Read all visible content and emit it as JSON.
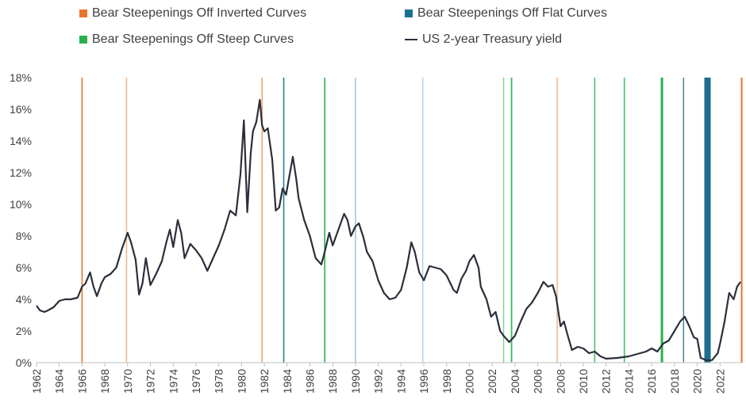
{
  "legend": {
    "items": [
      {
        "label": "Bear Steepenings Off Inverted Curves",
        "color": "#e8732a",
        "kind": "box"
      },
      {
        "label": "Bear Steepenings Off Flat Curves",
        "color": "#1b6e8f",
        "kind": "box"
      },
      {
        "label": "Bear Steepenings Off Steep Curves",
        "color": "#2ab04a",
        "kind": "box"
      },
      {
        "label": "US 2-year Treasury yield",
        "color": "#2c2f3a",
        "kind": "line"
      }
    ]
  },
  "chart_data": {
    "type": "line",
    "title": "",
    "xlabel": "",
    "ylabel": "",
    "xlim": [
      1962,
      2024
    ],
    "ylim": [
      0,
      18
    ],
    "grid": false,
    "legend_position": "top",
    "x_ticks": [
      "1962",
      "1964",
      "1966",
      "1968",
      "1970",
      "1972",
      "1974",
      "1976",
      "1978",
      "1980",
      "1982",
      "1984",
      "1986",
      "1988",
      "1990",
      "1992",
      "1994",
      "1996",
      "1998",
      "2000",
      "2002",
      "2004",
      "2006",
      "2008",
      "2010",
      "2012",
      "2014",
      "2016",
      "2018",
      "2020",
      "2022"
    ],
    "y_ticks": [
      "0%",
      "2%",
      "4%",
      "6%",
      "8%",
      "10%",
      "12%",
      "14%",
      "16%",
      "18%"
    ],
    "series": [
      {
        "name": "US 2-year Treasury yield",
        "color": "#2c2f3a",
        "points": [
          [
            1962.0,
            3.6
          ],
          [
            1962.3,
            3.3
          ],
          [
            1962.7,
            3.2
          ],
          [
            1963.0,
            3.3
          ],
          [
            1963.5,
            3.5
          ],
          [
            1964.0,
            3.9
          ],
          [
            1964.5,
            4.0
          ],
          [
            1965.0,
            4.0
          ],
          [
            1965.6,
            4.1
          ],
          [
            1966.0,
            4.8
          ],
          [
            1966.3,
            5.0
          ],
          [
            1966.7,
            5.7
          ],
          [
            1967.0,
            4.8
          ],
          [
            1967.3,
            4.2
          ],
          [
            1967.7,
            5.0
          ],
          [
            1968.0,
            5.4
          ],
          [
            1968.5,
            5.6
          ],
          [
            1969.0,
            6.0
          ],
          [
            1969.5,
            7.2
          ],
          [
            1970.0,
            8.2
          ],
          [
            1970.3,
            7.6
          ],
          [
            1970.7,
            6.5
          ],
          [
            1971.0,
            4.3
          ],
          [
            1971.3,
            5.0
          ],
          [
            1971.6,
            6.6
          ],
          [
            1972.0,
            4.9
          ],
          [
            1972.5,
            5.6
          ],
          [
            1973.0,
            6.4
          ],
          [
            1973.4,
            7.6
          ],
          [
            1973.7,
            8.4
          ],
          [
            1974.0,
            7.3
          ],
          [
            1974.4,
            9.0
          ],
          [
            1974.7,
            8.2
          ],
          [
            1975.0,
            6.6
          ],
          [
            1975.5,
            7.5
          ],
          [
            1976.0,
            7.1
          ],
          [
            1976.5,
            6.6
          ],
          [
            1977.0,
            5.8
          ],
          [
            1977.5,
            6.6
          ],
          [
            1978.0,
            7.4
          ],
          [
            1978.5,
            8.4
          ],
          [
            1979.0,
            9.6
          ],
          [
            1979.5,
            9.3
          ],
          [
            1979.9,
            11.9
          ],
          [
            1980.2,
            15.3
          ],
          [
            1980.5,
            9.5
          ],
          [
            1980.8,
            13.2
          ],
          [
            1981.0,
            14.6
          ],
          [
            1981.3,
            15.2
          ],
          [
            1981.6,
            16.6
          ],
          [
            1981.8,
            15.0
          ],
          [
            1982.0,
            14.6
          ],
          [
            1982.3,
            14.8
          ],
          [
            1982.7,
            12.8
          ],
          [
            1983.0,
            9.6
          ],
          [
            1983.3,
            9.8
          ],
          [
            1983.6,
            11.0
          ],
          [
            1983.9,
            10.6
          ],
          [
            1984.2,
            11.8
          ],
          [
            1984.5,
            13.0
          ],
          [
            1984.8,
            11.6
          ],
          [
            1985.0,
            10.4
          ],
          [
            1985.5,
            9.0
          ],
          [
            1986.0,
            8.0
          ],
          [
            1986.5,
            6.6
          ],
          [
            1987.0,
            6.2
          ],
          [
            1987.3,
            7.0
          ],
          [
            1987.7,
            8.2
          ],
          [
            1988.0,
            7.4
          ],
          [
            1988.5,
            8.4
          ],
          [
            1989.0,
            9.4
          ],
          [
            1989.3,
            9.0
          ],
          [
            1989.6,
            8.0
          ],
          [
            1990.0,
            8.6
          ],
          [
            1990.3,
            8.8
          ],
          [
            1990.7,
            7.9
          ],
          [
            1991.0,
            7.0
          ],
          [
            1991.5,
            6.4
          ],
          [
            1992.0,
            5.2
          ],
          [
            1992.5,
            4.4
          ],
          [
            1993.0,
            4.0
          ],
          [
            1993.5,
            4.1
          ],
          [
            1994.0,
            4.6
          ],
          [
            1994.5,
            6.0
          ],
          [
            1994.9,
            7.6
          ],
          [
            1995.2,
            7.0
          ],
          [
            1995.6,
            5.7
          ],
          [
            1996.0,
            5.2
          ],
          [
            1996.5,
            6.1
          ],
          [
            1997.0,
            6.0
          ],
          [
            1997.5,
            5.9
          ],
          [
            1998.0,
            5.5
          ],
          [
            1998.6,
            4.6
          ],
          [
            1998.9,
            4.4
          ],
          [
            1999.3,
            5.3
          ],
          [
            1999.7,
            5.8
          ],
          [
            2000.0,
            6.4
          ],
          [
            2000.4,
            6.8
          ],
          [
            2000.8,
            6.0
          ],
          [
            2001.0,
            4.8
          ],
          [
            2001.5,
            4.0
          ],
          [
            2001.9,
            2.9
          ],
          [
            2002.3,
            3.2
          ],
          [
            2002.7,
            2.0
          ],
          [
            2003.0,
            1.7
          ],
          [
            2003.5,
            1.3
          ],
          [
            2004.0,
            1.7
          ],
          [
            2004.5,
            2.6
          ],
          [
            2005.0,
            3.4
          ],
          [
            2005.5,
            3.8
          ],
          [
            2006.0,
            4.4
          ],
          [
            2006.5,
            5.1
          ],
          [
            2006.9,
            4.8
          ],
          [
            2007.3,
            4.9
          ],
          [
            2007.6,
            4.2
          ],
          [
            2008.0,
            2.3
          ],
          [
            2008.3,
            2.6
          ],
          [
            2008.6,
            1.8
          ],
          [
            2009.0,
            0.8
          ],
          [
            2009.5,
            1.0
          ],
          [
            2010.0,
            0.9
          ],
          [
            2010.5,
            0.6
          ],
          [
            2011.0,
            0.7
          ],
          [
            2011.5,
            0.4
          ],
          [
            2012.0,
            0.25
          ],
          [
            2013.0,
            0.3
          ],
          [
            2014.0,
            0.4
          ],
          [
            2014.5,
            0.5
          ],
          [
            2015.0,
            0.6
          ],
          [
            2015.5,
            0.7
          ],
          [
            2016.0,
            0.9
          ],
          [
            2016.5,
            0.7
          ],
          [
            2017.0,
            1.2
          ],
          [
            2017.5,
            1.4
          ],
          [
            2018.0,
            2.0
          ],
          [
            2018.5,
            2.6
          ],
          [
            2018.9,
            2.9
          ],
          [
            2019.3,
            2.3
          ],
          [
            2019.7,
            1.6
          ],
          [
            2020.0,
            1.5
          ],
          [
            2020.3,
            0.3
          ],
          [
            2020.8,
            0.15
          ],
          [
            2021.3,
            0.16
          ],
          [
            2021.8,
            0.6
          ],
          [
            2022.0,
            1.2
          ],
          [
            2022.4,
            2.6
          ],
          [
            2022.8,
            4.4
          ],
          [
            2023.2,
            4.0
          ],
          [
            2023.5,
            4.8
          ],
          [
            2023.8,
            5.1
          ]
        ]
      }
    ],
    "markers": [
      {
        "year": 1966.0,
        "width": 1.6,
        "category": "Bear Steepenings Off Inverted Curves",
        "color": "#e8732a",
        "opacity": 1.0
      },
      {
        "year": 1969.9,
        "width": 1.6,
        "category": "Bear Steepenings Off Inverted Curves",
        "color": "#f2b98a",
        "opacity": 1.0
      },
      {
        "year": 1981.8,
        "width": 1.6,
        "category": "Bear Steepenings Off Inverted Curves",
        "color": "#eda66f",
        "opacity": 1.0
      },
      {
        "year": 1983.7,
        "width": 1.6,
        "category": "Bear Steepenings Off Flat Curves",
        "color": "#2a7c98",
        "opacity": 1.0
      },
      {
        "year": 1987.3,
        "width": 1.8,
        "category": "Bear Steepenings Off Steep Curves",
        "color": "#3cb85a",
        "opacity": 1.0
      },
      {
        "year": 1990.0,
        "width": 1.4,
        "category": "Bear Steepenings Off Flat Curves",
        "color": "#8cc3d6",
        "opacity": 1.0
      },
      {
        "year": 1995.9,
        "width": 1.4,
        "category": "Bear Steepenings Off Flat Curves",
        "color": "#a6d2e2",
        "opacity": 1.0
      },
      {
        "year": 2003.0,
        "width": 1.4,
        "category": "Bear Steepenings Off Steep Curves",
        "color": "#7fd19a",
        "opacity": 1.0
      },
      {
        "year": 2003.7,
        "width": 1.8,
        "category": "Bear Steepenings Off Steep Curves",
        "color": "#3cb85a",
        "opacity": 1.0
      },
      {
        "year": 2007.7,
        "width": 1.6,
        "category": "Bear Steepenings Off Inverted Curves",
        "color": "#f2b98a",
        "opacity": 1.0
      },
      {
        "year": 2011.0,
        "width": 1.6,
        "category": "Bear Steepenings Off Steep Curves",
        "color": "#4cbf68",
        "opacity": 1.0
      },
      {
        "year": 2013.6,
        "width": 1.6,
        "category": "Bear Steepenings Off Steep Curves",
        "color": "#4cbf68",
        "opacity": 1.0
      },
      {
        "year": 2016.9,
        "width": 3.0,
        "category": "Bear Steepenings Off Steep Curves",
        "color": "#2ab04a",
        "opacity": 1.0
      },
      {
        "year": 2018.8,
        "width": 1.4,
        "category": "Bear Steepenings Off Flat Curves",
        "color": "#3a7e9c",
        "opacity": 1.0
      },
      {
        "year": 2020.9,
        "width": 8.0,
        "category": "Bear Steepenings Off Flat Curves",
        "color": "#1b6e8f",
        "opacity": 1.0
      },
      {
        "year": 2023.9,
        "width": 2.0,
        "category": "Bear Steepenings Off Inverted Curves",
        "color": "#e8732a",
        "opacity": 1.0
      }
    ]
  }
}
